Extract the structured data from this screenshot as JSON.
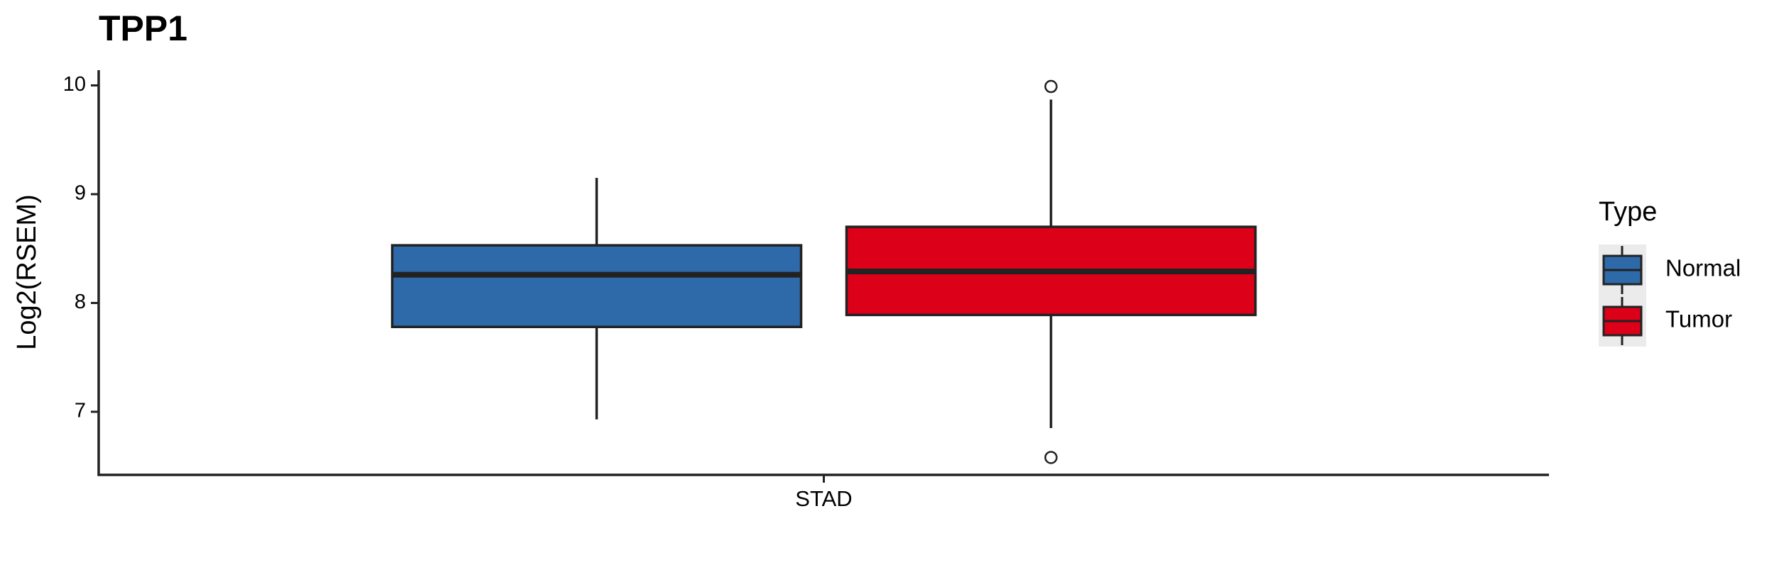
{
  "chart_data": {
    "type": "box",
    "title": "TPP1",
    "y_label": "Log2(RSEM)",
    "categories": [
      "STAD"
    ],
    "legend_title": "Type",
    "ylim": [
      6.42,
      10.14
    ],
    "yticks": [
      7,
      8,
      9,
      10
    ],
    "series": [
      {
        "name": "Normal",
        "color": "#2e6aa9",
        "low": 6.93,
        "q1": 7.78,
        "median": 8.26,
        "q3": 8.53,
        "high": 9.15
      },
      {
        "name": "Tumor",
        "color": "#dc0019",
        "low": 6.85,
        "q1": 7.89,
        "median": 8.29,
        "q3": 8.7,
        "high": 9.87,
        "outliers": [
          9.99,
          6.58
        ]
      }
    ]
  }
}
